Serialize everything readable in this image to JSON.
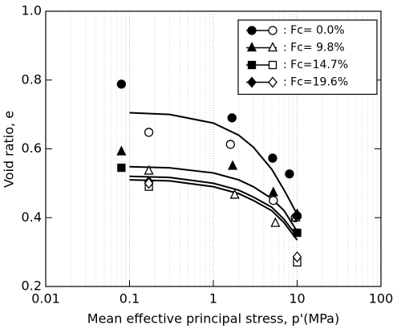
{
  "chart_data": {
    "type": "scatter",
    "x_scale": "log",
    "grid": true,
    "legend": "top-right",
    "x_label": "Mean effective principal stress, p'(MPa)",
    "y_label": "Void ratio, e",
    "xlim": [
      0.01,
      100
    ],
    "xticks": [
      0.01,
      0.1,
      1,
      10,
      100
    ],
    "ylim": [
      0.2,
      1.0
    ],
    "yticks": [
      0.2,
      0.4,
      0.6,
      0.8,
      {
        "value": 1.0,
        "label": "1.0"
      }
    ],
    "series": [
      {
        "name": ": Fc= 0.0%",
        "marker": "circle",
        "color": "#000000",
        "x": [
          0.08,
          1.67,
          5.1,
          8.1,
          10
        ],
        "values": [
          0.788,
          0.69,
          0.573,
          0.527,
          0.405
        ],
        "open_x": [
          0.17,
          1.6,
          5.2,
          9.5
        ],
        "open_values": [
          0.648,
          0.613,
          0.45,
          0.4
        ]
      },
      {
        "name": ": Fc= 9.8%",
        "marker": "triangle",
        "color": "#000000",
        "x": [
          0.08,
          1.7,
          5.2,
          10
        ],
        "values": [
          0.592,
          0.55,
          0.473,
          0.41
        ],
        "open_x": [
          0.17,
          1.8,
          5.5,
          9.6
        ],
        "open_values": [
          0.536,
          0.466,
          0.384,
          0.4
        ]
      },
      {
        "name": ": Fc=14.7%",
        "marker": "square",
        "color": "#000000",
        "x": [
          0.08,
          10
        ],
        "values": [
          0.545,
          0.356
        ],
        "open_x": [
          0.17,
          10
        ],
        "open_values": [
          0.49,
          0.27
        ]
      },
      {
        "name": ": Fc=19.6%",
        "marker": "diamond",
        "color": "#000000",
        "x": [
          0.17,
          9.8
        ],
        "values": [
          0.505,
          0.405
        ],
        "open_x": [
          0.17,
          10
        ],
        "open_values": [
          0.5,
          0.286
        ]
      }
    ],
    "fit_curves": [
      {
        "x": [
          0.1,
          0.3,
          1,
          2,
          3,
          5,
          7,
          10
        ],
        "values": [
          0.705,
          0.7,
          0.675,
          0.64,
          0.605,
          0.54,
          0.48,
          0.41
        ]
      },
      {
        "x": [
          0.1,
          0.3,
          1,
          2,
          3,
          5,
          7,
          10
        ],
        "values": [
          0.548,
          0.545,
          0.53,
          0.51,
          0.49,
          0.455,
          0.42,
          0.36
        ]
      },
      {
        "x": [
          0.1,
          0.3,
          1,
          2,
          3,
          5,
          7,
          10
        ],
        "values": [
          0.52,
          0.517,
          0.5,
          0.48,
          0.46,
          0.43,
          0.395,
          0.345
        ]
      },
      {
        "x": [
          0.1,
          0.3,
          1,
          2,
          3,
          5,
          7,
          10
        ],
        "values": [
          0.51,
          0.507,
          0.49,
          0.47,
          0.45,
          0.42,
          0.385,
          0.335
        ]
      }
    ]
  }
}
